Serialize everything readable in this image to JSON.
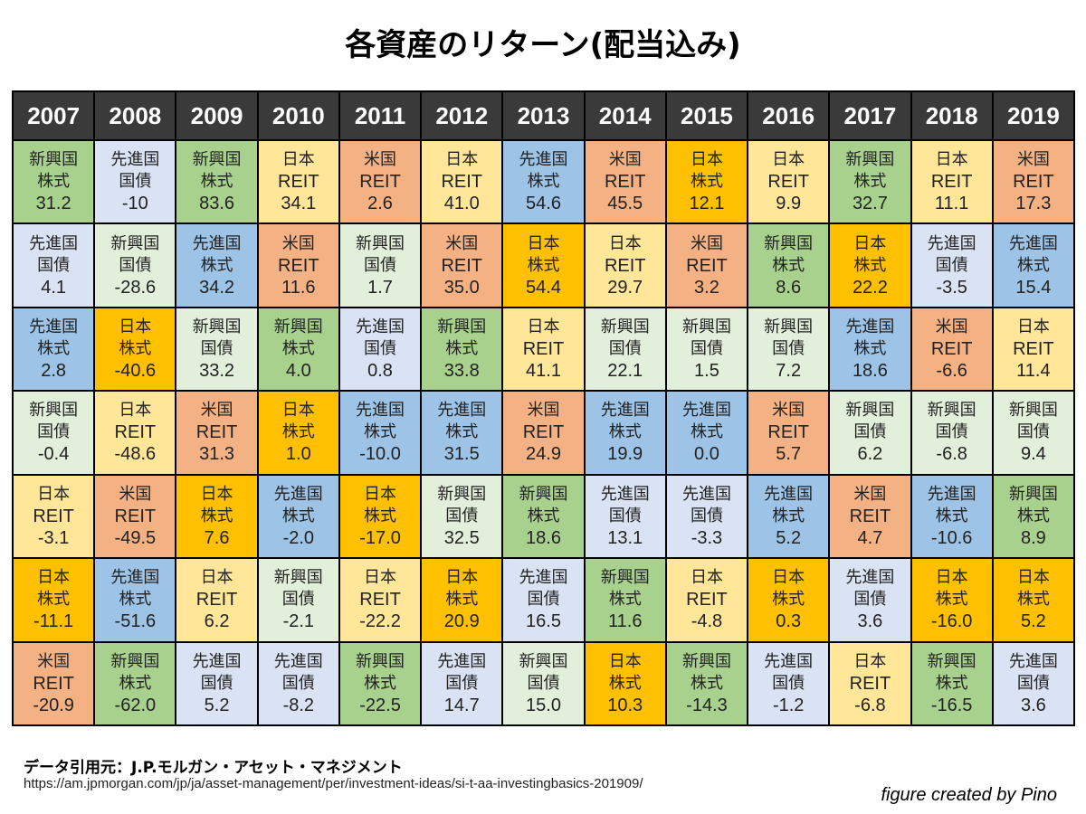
{
  "chart_data": {
    "type": "table",
    "title": "各資産のリターン(配当込み)",
    "years": [
      "2007",
      "2008",
      "2009",
      "2010",
      "2011",
      "2012",
      "2013",
      "2014",
      "2015",
      "2016",
      "2017",
      "2018",
      "2019"
    ],
    "asset_colors": {
      "新興国株式": "#a9d18e",
      "先進国国債": "#dae3f3",
      "新興国国債": "#e2efda",
      "先進国株式": "#9dc3e6",
      "日本REIT": "#ffe699",
      "日本株式": "#ffc000",
      "米国REIT": "#f4b183"
    },
    "asset_lines": {
      "新興国株式": [
        "新興国",
        "株式"
      ],
      "先進国国債": [
        "先進国",
        "国債"
      ],
      "新興国国債": [
        "新興国",
        "国債"
      ],
      "先進国株式": [
        "先進国",
        "株式"
      ],
      "日本REIT": [
        "日本",
        "REIT"
      ],
      "日本株式": [
        "日本",
        "株式"
      ],
      "米国REIT": [
        "米国",
        "REIT"
      ]
    },
    "columns": [
      [
        [
          "新興国株式",
          "31.2"
        ],
        [
          "先進国国債",
          "4.1"
        ],
        [
          "先進国株式",
          "2.8"
        ],
        [
          "新興国国債",
          "-0.4"
        ],
        [
          "日本REIT",
          "-3.1"
        ],
        [
          "日本株式",
          "-11.1"
        ],
        [
          "米国REIT",
          "-20.9"
        ]
      ],
      [
        [
          "先進国国債",
          "-10"
        ],
        [
          "新興国国債",
          "-28.6"
        ],
        [
          "日本株式",
          "-40.6"
        ],
        [
          "日本REIT",
          "-48.6"
        ],
        [
          "米国REIT",
          "-49.5"
        ],
        [
          "先進国株式",
          "-51.6"
        ],
        [
          "新興国株式",
          "-62.0"
        ]
      ],
      [
        [
          "新興国株式",
          "83.6"
        ],
        [
          "先進国株式",
          "34.2"
        ],
        [
          "新興国国債",
          "33.2"
        ],
        [
          "米国REIT",
          "31.3"
        ],
        [
          "日本株式",
          "7.6"
        ],
        [
          "日本REIT",
          "6.2"
        ],
        [
          "先進国国債",
          "5.2"
        ]
      ],
      [
        [
          "日本REIT",
          "34.1"
        ],
        [
          "米国REIT",
          "11.6"
        ],
        [
          "新興国株式",
          "4.0"
        ],
        [
          "日本株式",
          "1.0"
        ],
        [
          "先進国株式",
          "-2.0"
        ],
        [
          "新興国国債",
          "-2.1"
        ],
        [
          "先進国国債",
          "-8.2"
        ]
      ],
      [
        [
          "米国REIT",
          "2.6"
        ],
        [
          "新興国国債",
          "1.7"
        ],
        [
          "先進国国債",
          "0.8"
        ],
        [
          "先進国株式",
          "-10.0"
        ],
        [
          "日本株式",
          "-17.0"
        ],
        [
          "日本REIT",
          "-22.2"
        ],
        [
          "新興国株式",
          "-22.5"
        ]
      ],
      [
        [
          "日本REIT",
          "41.0"
        ],
        [
          "米国REIT",
          "35.0"
        ],
        [
          "新興国株式",
          "33.8"
        ],
        [
          "先進国株式",
          "31.5"
        ],
        [
          "新興国国債",
          "32.5"
        ],
        [
          "日本株式",
          "20.9"
        ],
        [
          "先進国国債",
          "14.7"
        ]
      ],
      [
        [
          "先進国株式",
          "54.6"
        ],
        [
          "日本株式",
          "54.4"
        ],
        [
          "日本REIT",
          "41.1"
        ],
        [
          "米国REIT",
          "24.9"
        ],
        [
          "新興国株式",
          "18.6"
        ],
        [
          "先進国国債",
          "16.5"
        ],
        [
          "新興国国債",
          "15.0"
        ]
      ],
      [
        [
          "米国REIT",
          "45.5"
        ],
        [
          "日本REIT",
          "29.7"
        ],
        [
          "新興国国債",
          "22.1"
        ],
        [
          "先進国株式",
          "19.9"
        ],
        [
          "先進国国債",
          "13.1"
        ],
        [
          "新興国株式",
          "11.6"
        ],
        [
          "日本株式",
          "10.3"
        ]
      ],
      [
        [
          "日本株式",
          "12.1"
        ],
        [
          "米国REIT",
          "3.2"
        ],
        [
          "新興国国債",
          "1.5"
        ],
        [
          "先進国株式",
          "0.0"
        ],
        [
          "先進国国債",
          "-3.3"
        ],
        [
          "日本REIT",
          "-4.8"
        ],
        [
          "新興国株式",
          "-14.3"
        ]
      ],
      [
        [
          "日本REIT",
          "9.9"
        ],
        [
          "新興国株式",
          "8.6"
        ],
        [
          "新興国国債",
          "7.2"
        ],
        [
          "米国REIT",
          "5.7"
        ],
        [
          "先進国株式",
          "5.2"
        ],
        [
          "日本株式",
          "0.3"
        ],
        [
          "先進国国債",
          "-1.2"
        ]
      ],
      [
        [
          "新興国株式",
          "32.7"
        ],
        [
          "日本株式",
          "22.2"
        ],
        [
          "先進国株式",
          "18.6"
        ],
        [
          "新興国国債",
          "6.2"
        ],
        [
          "米国REIT",
          "4.7"
        ],
        [
          "先進国国債",
          "3.6"
        ],
        [
          "日本REIT",
          "-6.8"
        ]
      ],
      [
        [
          "日本REIT",
          "11.1"
        ],
        [
          "先進国国債",
          "-3.5"
        ],
        [
          "米国REIT",
          "-6.6"
        ],
        [
          "新興国国債",
          "-6.8"
        ],
        [
          "先進国株式",
          "-10.6"
        ],
        [
          "日本株式",
          "-16.0"
        ],
        [
          "新興国株式",
          "-16.5"
        ]
      ],
      [
        [
          "米国REIT",
          "17.3"
        ],
        [
          "先進国株式",
          "15.4"
        ],
        [
          "日本REIT",
          "11.4"
        ],
        [
          "新興国国債",
          "9.4"
        ],
        [
          "新興国株式",
          "8.9"
        ],
        [
          "日本株式",
          "5.2"
        ],
        [
          "先進国国債",
          "3.6"
        ]
      ]
    ]
  },
  "footer": {
    "source_label": "データ引用元：J.P.モルガン・アセット・マネジメント",
    "source_url": "https://am.jpmorgan.com/jp/ja/asset-management/per/investment-ideas/si-t-aa-investingbasics-201909/",
    "credit": "figure created by Pino"
  }
}
